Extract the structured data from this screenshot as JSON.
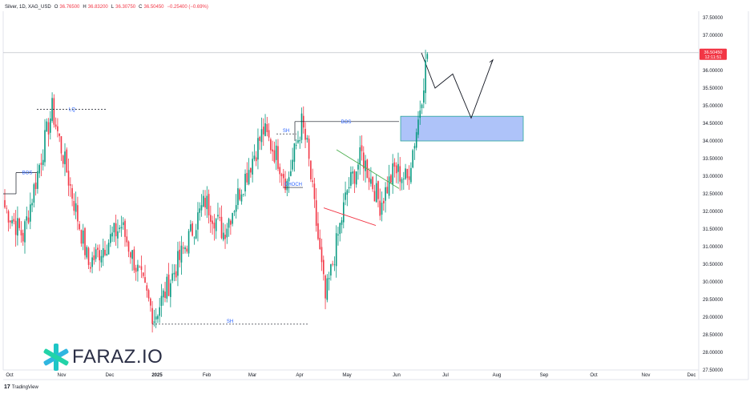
{
  "legend": {
    "symbol": "Silver, 1D, XAG_USD",
    "open_label": "O",
    "open": "36.76500",
    "high_label": "H",
    "high": "36.83200",
    "low_label": "L",
    "low": "36.30750",
    "close_label": "C",
    "close": "36.50450",
    "change": "−0.25400 (−0.69%)"
  },
  "price_tag": {
    "price": "36.50450",
    "countdown": "12:11:51",
    "color": "#f23645"
  },
  "watermark": {
    "logo_text": "FARAZ.IO",
    "logo_icon": "asterisk-logo-icon"
  },
  "footer": {
    "brand": "TradingView",
    "brand_icon": "tradingview-icon"
  },
  "chart_data": {
    "type": "candlestick",
    "symbol": "XAG_USD",
    "ylim": [
      27.5,
      37.5
    ],
    "y_ticks": [
      "37.50000",
      "37.00000",
      "36.50000",
      "36.00000",
      "35.50000",
      "35.00000",
      "34.50000",
      "34.00000",
      "33.50000",
      "33.00000",
      "32.50000",
      "32.00000",
      "31.50000",
      "31.00000",
      "30.50000",
      "30.00000",
      "29.50000",
      "29.00000",
      "28.50000",
      "28.00000",
      "27.50000"
    ],
    "x_ticks": [
      "Oct",
      "Nov",
      "Dec",
      "2025",
      "Feb",
      "Mar",
      "Apr",
      "May",
      "Jun",
      "Jul",
      "Aug",
      "Sep",
      "Oct",
      "Nov",
      "Dec"
    ],
    "up_color": "#089981",
    "down_color": "#f23645",
    "current_price": 36.5045,
    "segments": [
      {
        "n": 11,
        "from": 32.2,
        "to": 31.3
      },
      {
        "n": 16,
        "from": 31.3,
        "to": 34.9
      },
      {
        "n": 20,
        "from": 34.9,
        "to": 30.5
      },
      {
        "n": 18,
        "from": 30.5,
        "to": 31.6
      },
      {
        "n": 18,
        "from": 31.6,
        "to": 29.0
      },
      {
        "n": 28,
        "from": 29.0,
        "to": 32.3
      },
      {
        "n": 10,
        "from": 32.3,
        "to": 31.4
      },
      {
        "n": 22,
        "from": 31.4,
        "to": 34.3
      },
      {
        "n": 8,
        "from": 34.3,
        "to": 33.5
      },
      {
        "n": 5,
        "from": 33.5,
        "to": 32.8
      },
      {
        "n": 8,
        "from": 32.8,
        "to": 34.5
      },
      {
        "n": 3,
        "from": 34.5,
        "to": 33.8
      },
      {
        "n": 10,
        "from": 33.8,
        "to": 29.5
      },
      {
        "n": 12,
        "from": 29.5,
        "to": 32.6
      },
      {
        "n": 8,
        "from": 32.6,
        "to": 33.6
      },
      {
        "n": 10,
        "from": 33.6,
        "to": 32.2
      },
      {
        "n": 8,
        "from": 32.2,
        "to": 33.2
      },
      {
        "n": 7,
        "from": 33.2,
        "to": 32.9
      },
      {
        "n": 6,
        "from": 32.9,
        "to": 34.6
      },
      {
        "n": 5,
        "from": 34.6,
        "to": 36.5
      }
    ],
    "annotations": [
      {
        "id": "bos-left",
        "label": "BOS",
        "color": "#2962ff"
      },
      {
        "id": "lq",
        "label": "LQ",
        "color": "#2962ff"
      },
      {
        "id": "sh-mar",
        "label": "SH",
        "color": "#2962ff"
      },
      {
        "id": "bos-mid",
        "label": "BOS",
        "color": "#2962ff"
      },
      {
        "id": "choch",
        "label": "CHOCH",
        "color": "#2962ff"
      },
      {
        "id": "sh-low",
        "label": "SH",
        "color": "#2962ff"
      }
    ],
    "zone": {
      "top": 34.7,
      "bottom": 34.0,
      "fill": "#9ab4f7",
      "stroke": "#27a69a"
    },
    "projection_path": [
      36.5,
      35.5,
      35.9,
      34.65,
      36.3
    ],
    "triangle": {
      "upper_color": "#4caf50",
      "lower_color": "#f23645"
    }
  }
}
